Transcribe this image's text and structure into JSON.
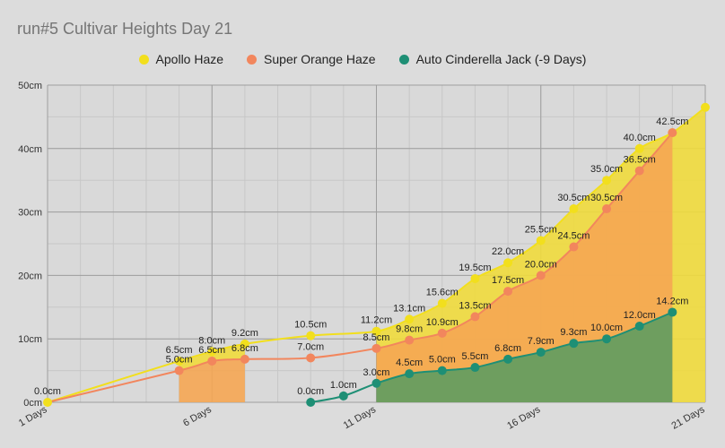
{
  "chart_data": {
    "type": "area",
    "title": "run#5 Cultivar Heights Day 21",
    "xlabel": "",
    "ylabel": "",
    "x_ticks": [
      {
        "x": 1,
        "label": "1 Days"
      },
      {
        "x": 6,
        "label": "6 Days"
      },
      {
        "x": 11,
        "label": "11 Days"
      },
      {
        "x": 16,
        "label": "16 Days"
      },
      {
        "x": 21,
        "label": "21 Days"
      }
    ],
    "x_range": [
      1,
      21
    ],
    "y_ticks": [
      {
        "y": 0,
        "label": "0cm"
      },
      {
        "y": 10,
        "label": "10cm"
      },
      {
        "y": 20,
        "label": "20cm"
      },
      {
        "y": 30,
        "label": "30cm"
      },
      {
        "y": 40,
        "label": "40cm"
      },
      {
        "y": 50,
        "label": "50cm"
      }
    ],
    "ylim": [
      0,
      50
    ],
    "grid": true,
    "legend_position": "top",
    "series": [
      {
        "name": "Apollo Haze",
        "color": "#f2df1d",
        "fill": "#f0da3c",
        "points": [
          {
            "x": 1,
            "y": 0,
            "label": "0.0cm"
          },
          {
            "x": 5,
            "y": 6.5,
            "label": "6.5cm"
          },
          {
            "x": 6,
            "y": 8,
            "label": "8.0cm"
          },
          {
            "x": 7,
            "y": 9.2,
            "label": "9.2cm"
          },
          {
            "x": 9,
            "y": 10.5,
            "label": "10.5cm"
          },
          {
            "x": 11,
            "y": 11.2,
            "label": "11.2cm"
          },
          {
            "x": 12,
            "y": 13.1,
            "label": "13.1cm"
          },
          {
            "x": 13,
            "y": 15.6,
            "label": "15.6cm"
          },
          {
            "x": 14,
            "y": 19.5,
            "label": "19.5cm"
          },
          {
            "x": 15,
            "y": 22,
            "label": "22.0cm"
          },
          {
            "x": 16,
            "y": 25.5,
            "label": "25.5cm"
          },
          {
            "x": 17,
            "y": 30.5,
            "label": "30.5cm"
          },
          {
            "x": 18,
            "y": 35,
            "label": "35.0cm"
          },
          {
            "x": 19,
            "y": 40,
            "label": "40.0cm"
          },
          {
            "x": 20,
            "y": 42.5,
            "label": "42.5cm"
          },
          {
            "x": 21,
            "y": 46.5,
            "label": ""
          }
        ]
      },
      {
        "name": "Super Orange Haze",
        "color": "#f2865d",
        "fill": "#f5a653",
        "points": [
          {
            "x": 1,
            "y": 0,
            "label": ""
          },
          {
            "x": 5,
            "y": 5,
            "label": "5.0cm"
          },
          {
            "x": 6,
            "y": 6.5,
            "label": "6.5cm"
          },
          {
            "x": 7,
            "y": 6.8,
            "label": "6.8cm"
          },
          {
            "x": 9,
            "y": 7,
            "label": "7.0cm"
          },
          {
            "x": 11,
            "y": 8.5,
            "label": "8.5cm"
          },
          {
            "x": 12,
            "y": 9.8,
            "label": "9.8cm"
          },
          {
            "x": 13,
            "y": 10.9,
            "label": "10.9cm"
          },
          {
            "x": 14,
            "y": 13.5,
            "label": "13.5cm"
          },
          {
            "x": 15,
            "y": 17.5,
            "label": "17.5cm"
          },
          {
            "x": 16,
            "y": 20,
            "label": "20.0cm"
          },
          {
            "x": 17,
            "y": 24.5,
            "label": "24.5cm"
          },
          {
            "x": 18,
            "y": 30.5,
            "label": "30.5cm"
          },
          {
            "x": 19,
            "y": 36.5,
            "label": "36.5cm"
          },
          {
            "x": 20,
            "y": 42.5,
            "label": ""
          }
        ]
      },
      {
        "name": "Auto Cinderella Jack (-9 Days)",
        "color": "#1e8f75",
        "fill": "#5f9c60",
        "points": [
          {
            "x": 9,
            "y": 0,
            "label": "0.0cm"
          },
          {
            "x": 10,
            "y": 1,
            "label": "1.0cm"
          },
          {
            "x": 11,
            "y": 3,
            "label": "3.0cm"
          },
          {
            "x": 12,
            "y": 4.5,
            "label": "4.5cm"
          },
          {
            "x": 13,
            "y": 5,
            "label": "5.0cm"
          },
          {
            "x": 14,
            "y": 5.5,
            "label": "5.5cm"
          },
          {
            "x": 15,
            "y": 6.8,
            "label": "6.8cm"
          },
          {
            "x": 16,
            "y": 7.9,
            "label": "7.9cm"
          },
          {
            "x": 17,
            "y": 9.3,
            "label": "9.3cm"
          },
          {
            "x": 18,
            "y": 10,
            "label": "10.0cm"
          },
          {
            "x": 19,
            "y": 12,
            "label": "12.0cm"
          },
          {
            "x": 20,
            "y": 14.2,
            "label": "14.2cm"
          }
        ]
      }
    ]
  }
}
